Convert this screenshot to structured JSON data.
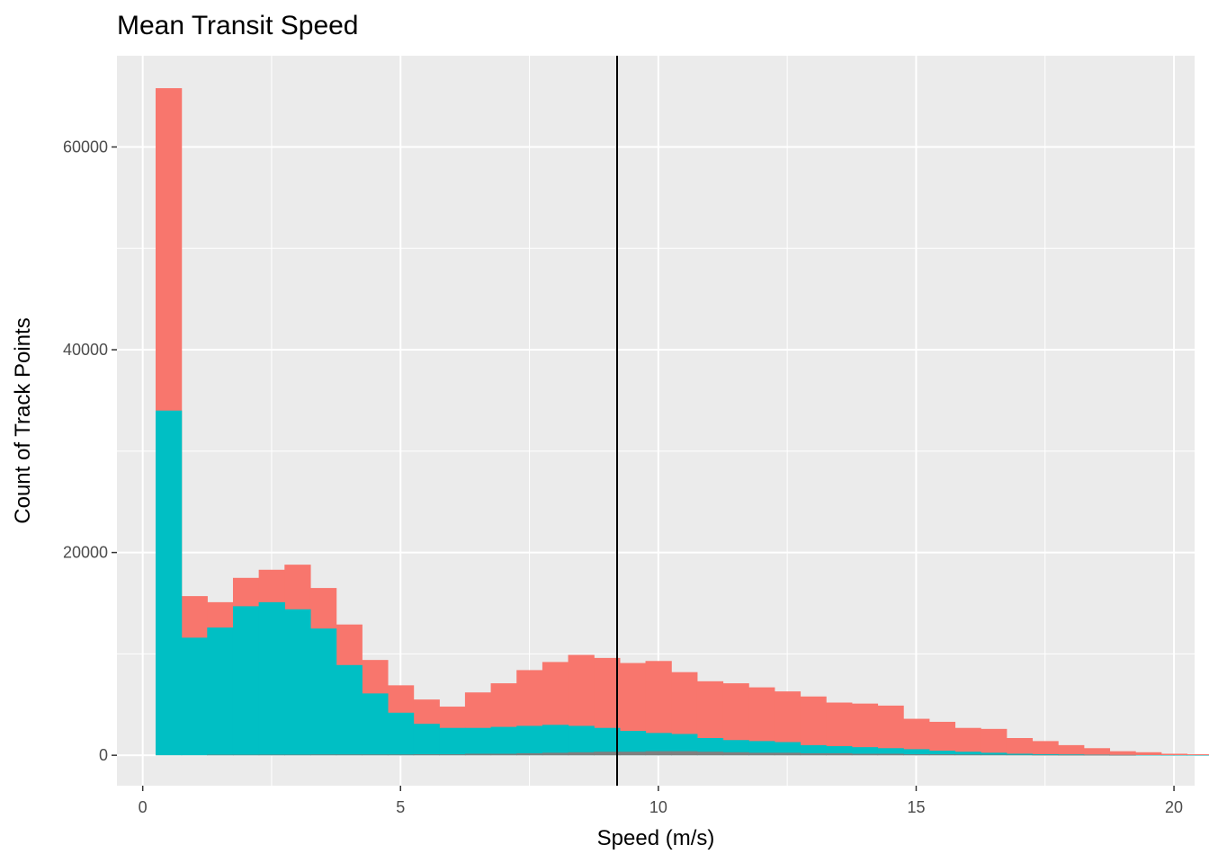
{
  "chart_data": {
    "type": "bar",
    "title": "Mean Transit Speed",
    "xlabel": "Speed (m/s)",
    "ylabel": "Count of Track Points",
    "xlim": [
      -0.5,
      20.4
    ],
    "ylim": [
      -3000,
      69000
    ],
    "x_ticks": [
      0,
      5,
      10,
      15,
      20
    ],
    "x_tick_labels": [
      "0",
      "5",
      "10",
      "15",
      "20"
    ],
    "y_ticks": [
      0,
      20000,
      40000,
      60000
    ],
    "y_tick_labels": [
      "0",
      "20000",
      "40000",
      "60000"
    ],
    "grid": true,
    "legend": "none",
    "bin_width": 0.5,
    "bin_start": 0.25,
    "reference_line_x": 9.2,
    "colors": {
      "total": "#F8766D",
      "teal": "#00BFC4",
      "gray": "#7F7F7F",
      "panel": "#EBEBEB",
      "grid": "#FFFFFF",
      "reference_line": "#000000"
    },
    "series": [
      {
        "values": [
          65800,
          15700,
          15100,
          17500,
          18300,
          18800,
          16500,
          12900,
          9400,
          6900,
          5500,
          4800,
          6200,
          7100,
          8400,
          9200,
          9900,
          9600,
          9100,
          9300,
          8200,
          7300,
          7100,
          6700,
          6300,
          5800,
          5200,
          5100,
          4900,
          3600,
          3300,
          2700,
          2600,
          1700,
          1400,
          1000,
          700,
          400,
          300,
          150,
          100
        ]
      },
      {
        "values": [
          34000,
          11600,
          12600,
          14700,
          15100,
          14400,
          12500,
          8900,
          6100,
          4200,
          3100,
          2700,
          2700,
          2800,
          2900,
          3000,
          2900,
          2700,
          2400,
          2200,
          2100,
          1700,
          1500,
          1400,
          1300,
          1000,
          900,
          800,
          700,
          600,
          450,
          350,
          250,
          150,
          100,
          80,
          50,
          30,
          20,
          10,
          5
        ]
      },
      {
        "values": [
          0,
          0,
          50,
          50,
          60,
          60,
          80,
          80,
          80,
          80,
          100,
          100,
          150,
          150,
          200,
          250,
          300,
          350,
          350,
          400,
          400,
          350,
          300,
          250,
          250,
          200,
          200,
          150,
          150,
          100,
          100,
          80,
          60,
          40,
          20,
          10,
          10,
          5,
          0,
          0,
          0
        ]
      }
    ]
  }
}
